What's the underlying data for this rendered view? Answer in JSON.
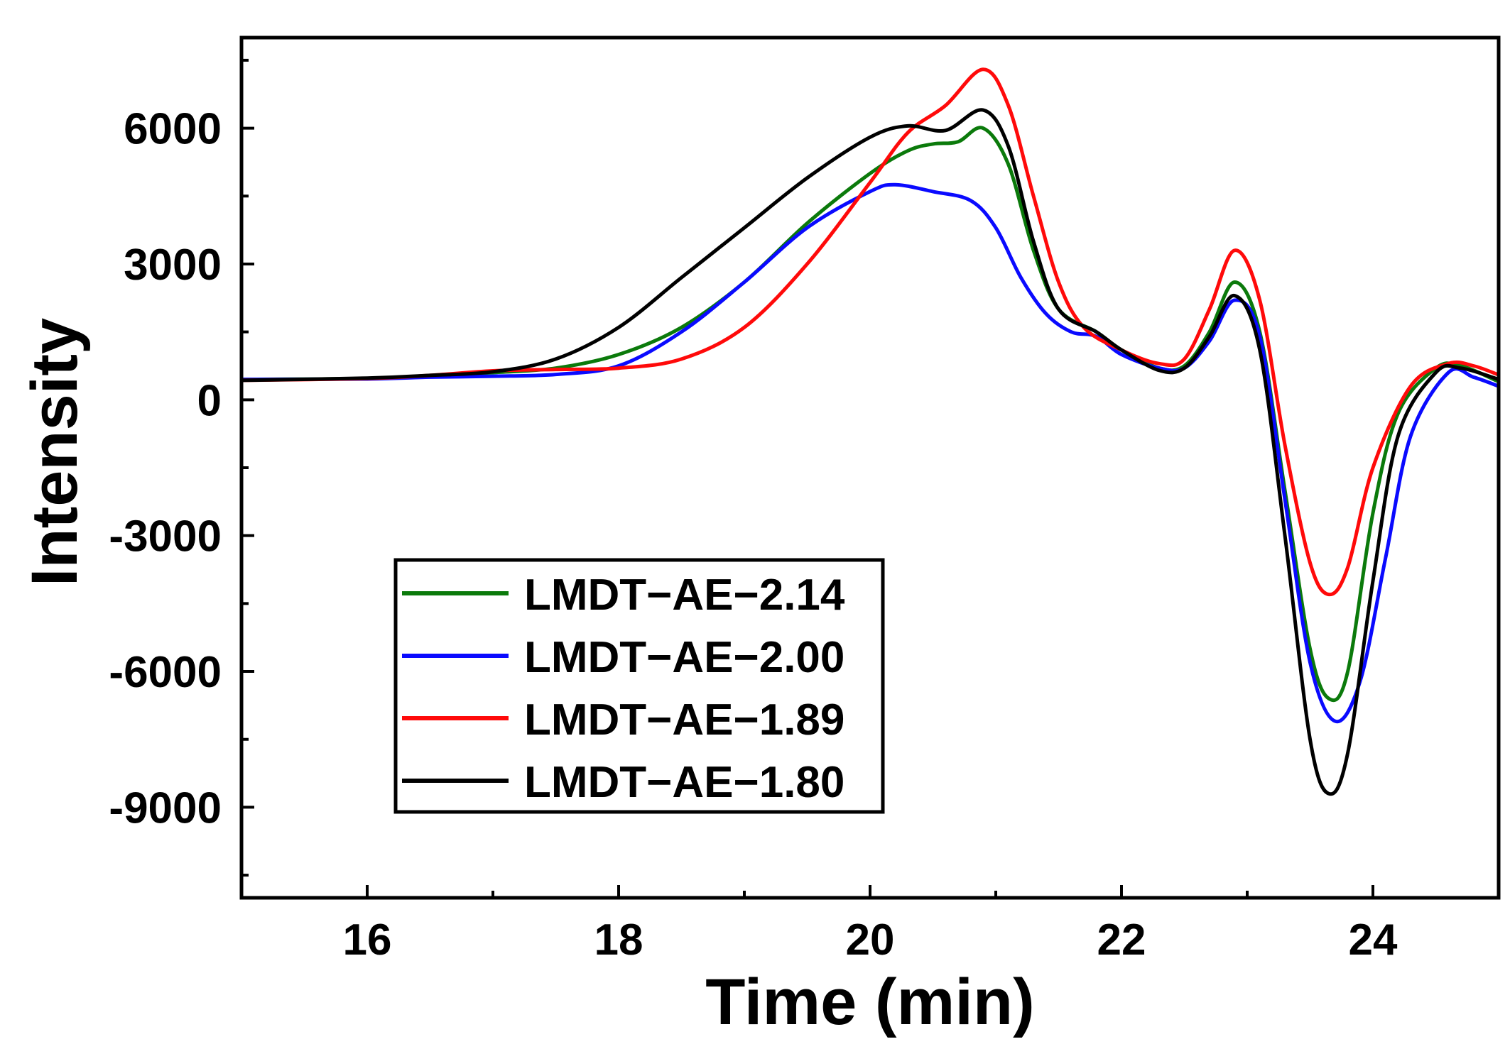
{
  "chart_data": {
    "type": "line",
    "title": "",
    "xlabel": "Time (min)",
    "ylabel": "Intensity",
    "xlim": [
      15,
      25
    ],
    "ylim": [
      -11000,
      8000
    ],
    "xticks": [
      16,
      18,
      20,
      22,
      24
    ],
    "yticks": [
      6000,
      3000,
      0,
      -3000,
      -6000,
      -9000
    ],
    "x_minor_step": 1,
    "y_minor_step": 1500,
    "legend_position": "lower-left",
    "series": [
      {
        "name": "LMDT−AE−2.14",
        "color": "#0b7a0b",
        "points": [
          [
            15,
            450
          ],
          [
            16,
            470
          ],
          [
            16.5,
            520
          ],
          [
            17,
            600
          ],
          [
            17.5,
            700
          ],
          [
            18,
            1000
          ],
          [
            18.5,
            1600
          ],
          [
            19,
            2600
          ],
          [
            19.5,
            3900
          ],
          [
            20,
            5000
          ],
          [
            20.3,
            5500
          ],
          [
            20.5,
            5650
          ],
          [
            20.7,
            5700
          ],
          [
            20.9,
            6000
          ],
          [
            21.1,
            5200
          ],
          [
            21.3,
            3300
          ],
          [
            21.5,
            2000
          ],
          [
            21.8,
            1500
          ],
          [
            22,
            1100
          ],
          [
            22.3,
            700
          ],
          [
            22.5,
            750
          ],
          [
            22.7,
            1500
          ],
          [
            22.9,
            2600
          ],
          [
            23.1,
            1500
          ],
          [
            23.3,
            -2000
          ],
          [
            23.5,
            -5500
          ],
          [
            23.65,
            -6600
          ],
          [
            23.8,
            -6000
          ],
          [
            24,
            -2500
          ],
          [
            24.2,
            -300
          ],
          [
            24.5,
            700
          ],
          [
            24.7,
            750
          ],
          [
            25,
            400
          ]
        ]
      },
      {
        "name": "LMDT−AE−2.00",
        "color": "#0a0aff",
        "points": [
          [
            15,
            450
          ],
          [
            16,
            460
          ],
          [
            16.5,
            500
          ],
          [
            17,
            520
          ],
          [
            17.5,
            560
          ],
          [
            18,
            750
          ],
          [
            18.5,
            1500
          ],
          [
            19,
            2600
          ],
          [
            19.5,
            3800
          ],
          [
            20,
            4600
          ],
          [
            20.2,
            4750
          ],
          [
            20.5,
            4600
          ],
          [
            20.8,
            4400
          ],
          [
            21,
            3800
          ],
          [
            21.2,
            2700
          ],
          [
            21.4,
            1900
          ],
          [
            21.6,
            1500
          ],
          [
            21.8,
            1400
          ],
          [
            22,
            1000
          ],
          [
            22.3,
            700
          ],
          [
            22.5,
            700
          ],
          [
            22.7,
            1300
          ],
          [
            22.9,
            2200
          ],
          [
            23.1,
            1400
          ],
          [
            23.3,
            -2200
          ],
          [
            23.5,
            -5800
          ],
          [
            23.7,
            -7100
          ],
          [
            23.9,
            -6200
          ],
          [
            24.1,
            -3500
          ],
          [
            24.3,
            -800
          ],
          [
            24.6,
            600
          ],
          [
            24.8,
            500
          ],
          [
            25,
            300
          ]
        ]
      },
      {
        "name": "LMDT−AE−1.89",
        "color": "#ff0a0a",
        "points": [
          [
            15,
            430
          ],
          [
            16,
            470
          ],
          [
            16.5,
            540
          ],
          [
            17,
            640
          ],
          [
            17.5,
            670
          ],
          [
            18,
            700
          ],
          [
            18.5,
            900
          ],
          [
            19,
            1600
          ],
          [
            19.5,
            3000
          ],
          [
            20,
            4800
          ],
          [
            20.3,
            5900
          ],
          [
            20.6,
            6500
          ],
          [
            20.9,
            7300
          ],
          [
            21.1,
            6500
          ],
          [
            21.3,
            4500
          ],
          [
            21.5,
            2600
          ],
          [
            21.7,
            1600
          ],
          [
            22,
            1100
          ],
          [
            22.3,
            800
          ],
          [
            22.5,
            900
          ],
          [
            22.7,
            2000
          ],
          [
            22.9,
            3300
          ],
          [
            23.1,
            2200
          ],
          [
            23.3,
            -1000
          ],
          [
            23.5,
            -3600
          ],
          [
            23.65,
            -4300
          ],
          [
            23.8,
            -3700
          ],
          [
            24,
            -1500
          ],
          [
            24.3,
            300
          ],
          [
            24.6,
            800
          ],
          [
            24.8,
            750
          ],
          [
            25,
            550
          ]
        ]
      },
      {
        "name": "LMDT−AE−1.80",
        "color": "#000000",
        "points": [
          [
            15,
            430
          ],
          [
            16,
            480
          ],
          [
            16.5,
            540
          ],
          [
            17,
            620
          ],
          [
            17.5,
            900
          ],
          [
            18,
            1600
          ],
          [
            18.5,
            2700
          ],
          [
            19,
            3800
          ],
          [
            19.5,
            4900
          ],
          [
            20,
            5800
          ],
          [
            20.3,
            6050
          ],
          [
            20.6,
            5950
          ],
          [
            20.9,
            6400
          ],
          [
            21.1,
            5600
          ],
          [
            21.3,
            3500
          ],
          [
            21.5,
            2000
          ],
          [
            21.8,
            1500
          ],
          [
            22,
            1100
          ],
          [
            22.3,
            650
          ],
          [
            22.5,
            700
          ],
          [
            22.7,
            1400
          ],
          [
            22.9,
            2300
          ],
          [
            23.1,
            1100
          ],
          [
            23.3,
            -3000
          ],
          [
            23.5,
            -7500
          ],
          [
            23.65,
            -8700
          ],
          [
            23.8,
            -7800
          ],
          [
            24,
            -4000
          ],
          [
            24.2,
            -800
          ],
          [
            24.5,
            600
          ],
          [
            24.7,
            700
          ],
          [
            25,
            450
          ]
        ]
      }
    ]
  }
}
